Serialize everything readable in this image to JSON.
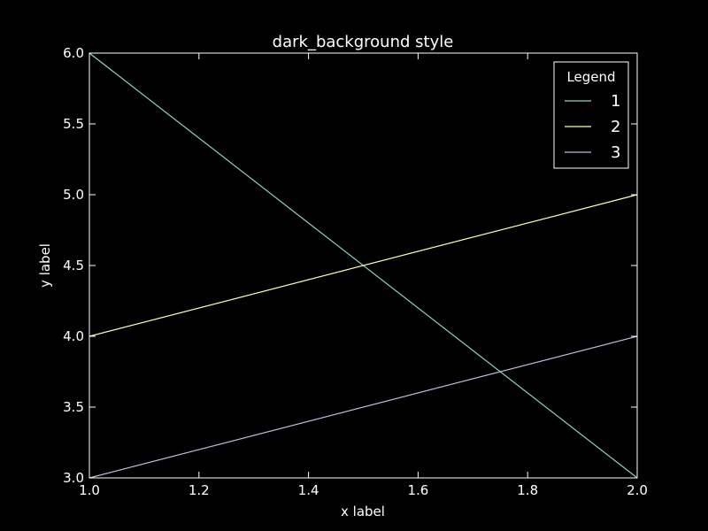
{
  "chart_data": {
    "type": "line",
    "title": "dark_background style",
    "xlabel": "x label",
    "ylabel": "y label",
    "xlim": [
      1.0,
      2.0
    ],
    "ylim": [
      3.0,
      6.0
    ],
    "x_ticks": [
      "1.0",
      "1.2",
      "1.4",
      "1.6",
      "1.8",
      "2.0"
    ],
    "y_ticks": [
      "3.0",
      "3.5",
      "4.0",
      "4.5",
      "5.0",
      "5.5",
      "6.0"
    ],
    "grid": false,
    "legend": {
      "title": "Legend",
      "placement": "top-right"
    },
    "series": [
      {
        "name": "1",
        "color": "#8dd3c7",
        "x": [
          1.0,
          2.0
        ],
        "y": [
          6.0,
          3.0
        ]
      },
      {
        "name": "2",
        "color": "#feffb3",
        "x": [
          1.0,
          2.0
        ],
        "y": [
          4.0,
          5.0
        ]
      },
      {
        "name": "3",
        "color": "#bfbbd9",
        "x": [
          1.0,
          2.0
        ],
        "y": [
          3.0,
          4.0
        ]
      }
    ]
  }
}
